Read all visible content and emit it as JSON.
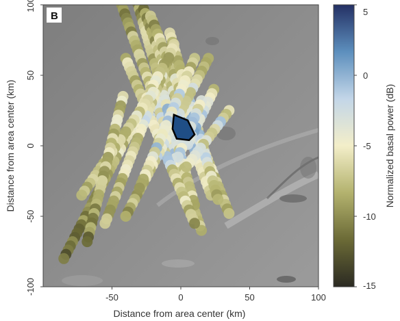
{
  "chart_data": {
    "type": "scatter",
    "panel_label": "B",
    "xlabel": "Distance from area center (km)",
    "ylabel": "Distance from area center (km)",
    "colorbar_label": "Normalized basal power (dB)",
    "xlim": [
      -100,
      100
    ],
    "ylim": [
      -100,
      100
    ],
    "x_ticks": [
      -50,
      0,
      50,
      100
    ],
    "y_ticks": [
      -100,
      -50,
      0,
      50,
      100
    ],
    "colorbar_range": [
      -15,
      5
    ],
    "colorbar_ticks": [
      5,
      0,
      -5,
      -10,
      -15
    ],
    "colormap": [
      "#2b2a22",
      "#6b6a36",
      "#b3b26e",
      "#f3eec9",
      "#c3d6e8",
      "#5d8fbd",
      "#243064"
    ],
    "grid": false,
    "background": "grayscale terrain image",
    "tracks": [
      {
        "x0": -43,
        "y0": 100,
        "x1": 15,
        "y1": -60
      },
      {
        "x0": -33,
        "y0": 107,
        "x1": 10,
        "y1": -42
      },
      {
        "x0": -27,
        "y0": 97,
        "x1": 22,
        "y1": -35
      },
      {
        "x0": -22,
        "y0": 92,
        "x1": 35,
        "y1": -48
      },
      {
        "x0": -8,
        "y0": 80,
        "x1": 27,
        "y1": -38
      },
      {
        "x0": -40,
        "y0": 62,
        "x1": 10,
        "y1": -55
      },
      {
        "x0": 20,
        "y0": 62,
        "x1": -40,
        "y1": -50
      },
      {
        "x0": 10,
        "y0": 62,
        "x1": -30,
        "y1": -30
      },
      {
        "x0": -5,
        "y0": 72,
        "x1": -55,
        "y1": -55
      },
      {
        "x0": -12,
        "y0": 58,
        "x1": -85,
        "y1": -80
      },
      {
        "x0": -20,
        "y0": 38,
        "x1": -72,
        "y1": -35
      },
      {
        "x0": -42,
        "y0": 35,
        "x1": -68,
        "y1": -68
      },
      {
        "x0": 35,
        "y0": 25,
        "x1": 4,
        "y1": -15
      },
      {
        "x0": 24,
        "y0": 40,
        "x1": 5,
        "y1": 1
      },
      {
        "x0": 15,
        "y0": 32,
        "x1": -2,
        "y1": -8
      }
    ],
    "bright_region": {
      "label": "outlined area",
      "polygon": [
        [
          -5,
          22
        ],
        [
          5,
          18
        ],
        [
          10,
          8
        ],
        [
          6,
          4
        ],
        [
          -3,
          5
        ],
        [
          -6,
          12
        ]
      ]
    }
  }
}
